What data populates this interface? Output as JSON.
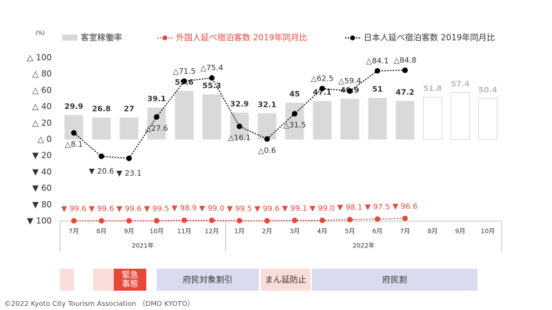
{
  "chart_data": {
    "type": "bar_line",
    "unit": "(%)",
    "categories": [
      "7月",
      "8月",
      "9月",
      "10月",
      "11月",
      "12月",
      "1月",
      "2月",
      "3月",
      "4月",
      "5月",
      "6月",
      "7月",
      "8月",
      "9月",
      "10月"
    ],
    "years": [
      "2021年",
      "2022年"
    ],
    "ylim": [
      -100,
      100
    ],
    "yticks": [
      {
        "value": 100,
        "label": "△ 100"
      },
      {
        "value": 80,
        "label": "△ 80"
      },
      {
        "value": 60,
        "label": "△ 60"
      },
      {
        "value": 40,
        "label": "△ 40"
      },
      {
        "value": 20,
        "label": "△ 20"
      },
      {
        "value": 0,
        "label": "△ 0"
      },
      {
        "value": -20,
        "label": "▼ 20"
      },
      {
        "value": -40,
        "label": "▼ 40"
      },
      {
        "value": -60,
        "label": "▼ 60"
      },
      {
        "value": -80,
        "label": "▼ 80"
      },
      {
        "value": -100,
        "label": "▼ 100"
      }
    ],
    "series": [
      {
        "name": "客室稼働率",
        "kind": "bar",
        "color": "#d9d9d9",
        "values": [
          29.9,
          26.8,
          27.0,
          39.1,
          59.6,
          55.3,
          32.9,
          32.1,
          45.0,
          47.1,
          49.9,
          51.0,
          47.2,
          51.8,
          57.4,
          50.4
        ],
        "outline": [
          false,
          false,
          false,
          false,
          false,
          false,
          false,
          false,
          false,
          false,
          false,
          false,
          false,
          true,
          true,
          true
        ]
      },
      {
        "name": "外国人延べ宿泊客数 2019年同月比",
        "kind": "line",
        "color": "#e8483a",
        "values": [
          -99.6,
          -99.6,
          -99.6,
          -99.5,
          -98.9,
          -99.0,
          -99.5,
          -99.6,
          -99.1,
          -99.0,
          -98.1,
          -97.5,
          -96.6,
          null,
          null,
          null
        ],
        "value_labels": [
          "▼ 99.6",
          "▼ 99.6",
          "▼ 99.6",
          "▼ 99.5",
          "▼ 98.9",
          "▼ 99.0",
          "▼ 99.5",
          "▼ 99.6",
          "▼ 99.1",
          "▼ 99.0",
          "▼ 98.1",
          "▼ 97.5",
          "▼ 96.6",
          null,
          null,
          null
        ]
      },
      {
        "name": "日本人延べ宿泊客数 2019年同月比",
        "kind": "line",
        "color": "#000000",
        "values": [
          8.1,
          -20.6,
          -23.1,
          27.6,
          71.5,
          75.4,
          16.1,
          0.6,
          31.5,
          62.5,
          59.4,
          84.1,
          84.8,
          null,
          null,
          null
        ],
        "value_labels": [
          "△8.1",
          "▼ 20.6",
          "▼ 23.1",
          "△27.6",
          "△71.5",
          "△75.4",
          "△16.1",
          "△0.6",
          "△31.5",
          "△62.5",
          "△59.4",
          "△84.1",
          "△84.8",
          null,
          null,
          null
        ]
      }
    ]
  },
  "timeline": [
    "緊急事態",
    "府民対象割引",
    "まん延防止",
    "府民割"
  ],
  "footer": "©2022 Kyoto City Tourism Association （DMO KYOTO）"
}
